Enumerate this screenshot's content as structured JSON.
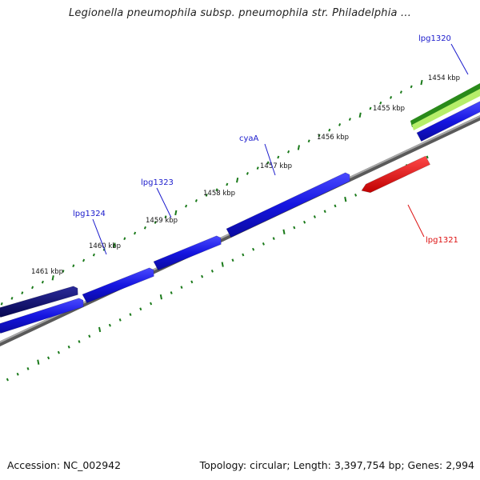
{
  "title": "Legionella pneumophila subsp. pneumophila str. Philadelphia ...",
  "footer": {
    "accession": "Accession: NC_002942",
    "summary": "Topology: circular; Length: 3,397,754 bp; Genes: 2,994"
  },
  "colors": {
    "tick": "#1a7a1a",
    "backbone": "#808080",
    "gene_blue": "#1515e0",
    "gene_navy": "#0a0a78",
    "gene_red": "#ee1111",
    "gene_green_dark": "#2a8a1a",
    "gene_green_light": "#b6ee6a",
    "label_blue": "#1a1acc",
    "label_red": "#dd1111"
  },
  "scale_labels": [
    "1454 kbp",
    "1455 kbp",
    "1456 kbp",
    "1457 kbp",
    "1458 kbp",
    "1459 kbp",
    "1460 kbp",
    "1461 kbp"
  ],
  "gene_labels": [
    {
      "text": "lpg1320",
      "color": "#1a1acc"
    },
    {
      "text": "cyaA",
      "color": "#1a1acc"
    },
    {
      "text": "lpg1323",
      "color": "#1a1acc"
    },
    {
      "text": "lpg1324",
      "color": "#1a1acc"
    },
    {
      "text": "lpg1321",
      "color": "#dd1111"
    }
  ]
}
